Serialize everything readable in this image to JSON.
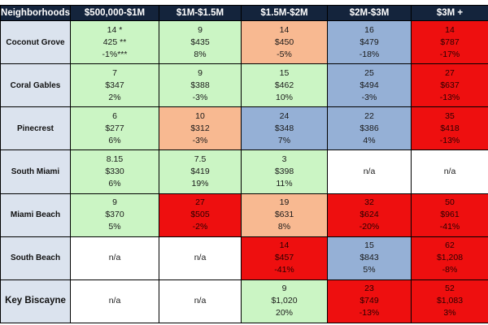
{
  "chart_data": {
    "type": "table",
    "headers": [
      "Neighborhoods",
      "$500,000-$1M",
      "$1M-$1.5M",
      "$1.5M-$2M",
      "$2M-$3M",
      "$3M +"
    ],
    "colors": {
      "header_bg": "#14243c",
      "label_bg": "#dbe3ee",
      "green": "#cbf5c4",
      "orange": "#f8b991",
      "blue": "#95b0d6",
      "red": "#ee0f0f",
      "white": "#ffffff"
    },
    "rows": [
      {
        "neighborhood": "Coconut Grove",
        "cells": [
          {
            "color": "green",
            "lines": [
              "14 *",
              "425 **",
              "-1%***"
            ]
          },
          {
            "color": "green",
            "lines": [
              "9",
              "$435",
              "8%"
            ]
          },
          {
            "color": "orange",
            "lines": [
              "14",
              "$450",
              "-5%"
            ]
          },
          {
            "color": "blue",
            "lines": [
              "16",
              "$479",
              "-18%"
            ]
          },
          {
            "color": "red",
            "lines": [
              "14",
              "$787",
              "-17%"
            ]
          }
        ]
      },
      {
        "neighborhood": "Coral Gables",
        "cells": [
          {
            "color": "green",
            "lines": [
              "7",
              "$347",
              "2%"
            ]
          },
          {
            "color": "green",
            "lines": [
              "9",
              "$388",
              "-3%"
            ]
          },
          {
            "color": "green",
            "lines": [
              "15",
              "$462",
              "10%"
            ]
          },
          {
            "color": "blue",
            "lines": [
              "25",
              "$494",
              "-3%"
            ]
          },
          {
            "color": "red",
            "lines": [
              "27",
              "$637",
              "-13%"
            ]
          }
        ]
      },
      {
        "neighborhood": "Pinecrest",
        "cells": [
          {
            "color": "green",
            "lines": [
              "6",
              "$277",
              "6%"
            ]
          },
          {
            "color": "orange",
            "lines": [
              "10",
              "$312",
              "-3%"
            ]
          },
          {
            "color": "blue",
            "lines": [
              "24",
              "$348",
              "7%"
            ]
          },
          {
            "color": "blue",
            "lines": [
              "22",
              "$386",
              "4%"
            ]
          },
          {
            "color": "red",
            "lines": [
              "35",
              "$418",
              "-13%"
            ]
          }
        ]
      },
      {
        "neighborhood": "South Miami",
        "cells": [
          {
            "color": "green",
            "lines": [
              "8.15",
              "$330",
              "6%"
            ]
          },
          {
            "color": "green",
            "lines": [
              "7.5",
              "$419",
              "19%"
            ]
          },
          {
            "color": "green",
            "lines": [
              "3",
              "$398",
              "11%"
            ]
          },
          {
            "color": "white",
            "lines": [
              "n/a"
            ]
          },
          {
            "color": "white",
            "lines": [
              "n/a"
            ]
          }
        ]
      },
      {
        "neighborhood": "Miami Beach",
        "cells": [
          {
            "color": "green",
            "lines": [
              "9",
              "$370",
              "5%"
            ]
          },
          {
            "color": "red",
            "lines": [
              "27",
              "$505",
              "-2%"
            ]
          },
          {
            "color": "orange",
            "lines": [
              "19",
              "$631",
              "8%"
            ]
          },
          {
            "color": "red",
            "lines": [
              "32",
              "$624",
              "-20%"
            ]
          },
          {
            "color": "red",
            "lines": [
              "50",
              "$961",
              "-41%"
            ]
          }
        ]
      },
      {
        "neighborhood": "South Beach",
        "cells": [
          {
            "color": "white",
            "lines": [
              "n/a"
            ]
          },
          {
            "color": "white",
            "lines": [
              "n/a"
            ]
          },
          {
            "color": "red",
            "lines": [
              "14",
              "$457",
              "-41%"
            ]
          },
          {
            "color": "blue",
            "lines": [
              "15",
              "$843",
              "5%"
            ]
          },
          {
            "color": "red",
            "lines": [
              "62",
              "$1,208",
              "-8%"
            ]
          }
        ]
      },
      {
        "neighborhood": "Key Biscayne",
        "big_label": true,
        "cells": [
          {
            "color": "white",
            "lines": [
              "n/a"
            ]
          },
          {
            "color": "white",
            "lines": [
              "n/a"
            ]
          },
          {
            "color": "green",
            "lines": [
              "9",
              "$1,020",
              "20%"
            ]
          },
          {
            "color": "red",
            "lines": [
              "23",
              "$749",
              "-13%"
            ]
          },
          {
            "color": "red",
            "lines": [
              "52",
              "$1,083",
              "3%"
            ]
          }
        ]
      }
    ]
  }
}
